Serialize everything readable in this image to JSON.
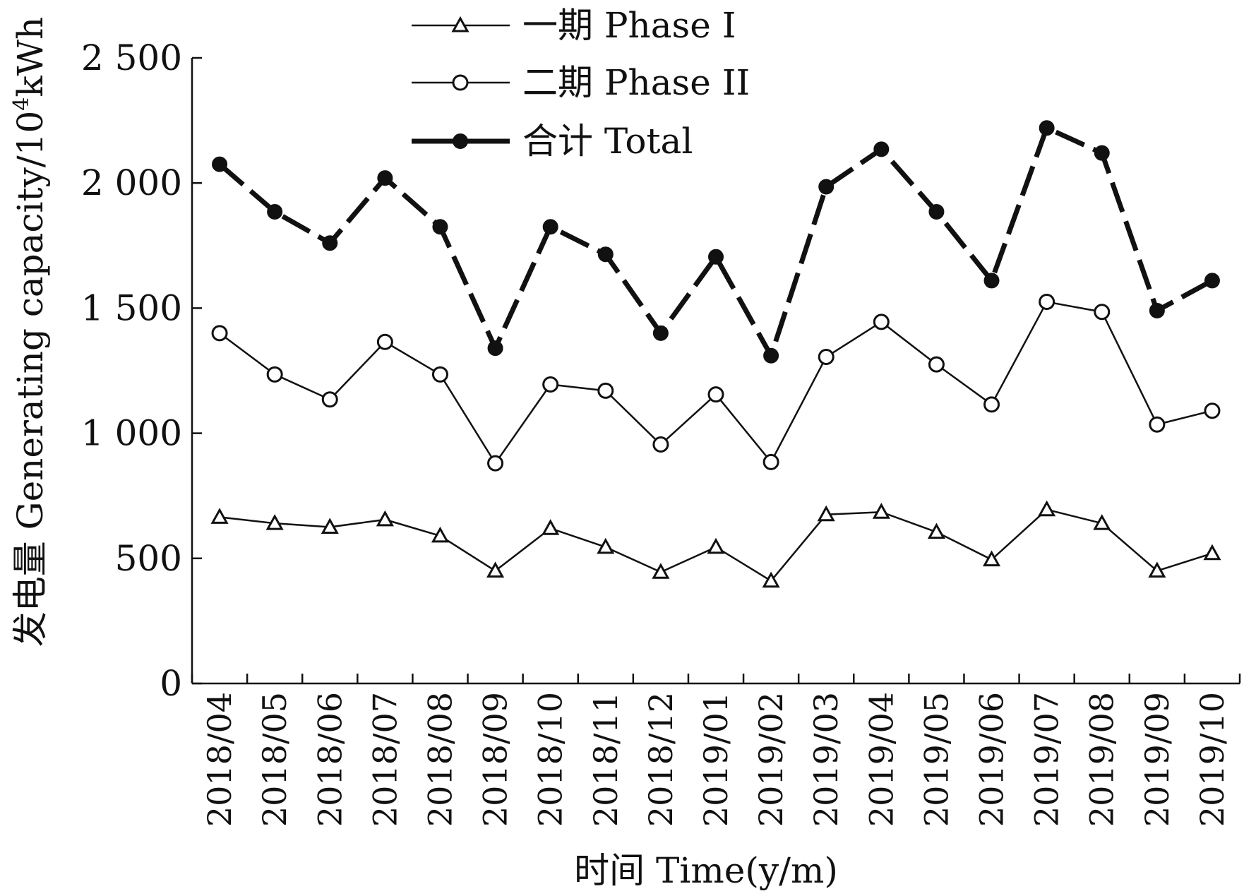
{
  "chart_data": {
    "type": "line",
    "title": "",
    "xlabel": "时间 Time(y/m)",
    "ylabel_cn": "发电量 Generating capacity/10",
    "ylabel_exp": "4",
    "ylabel_unit": "kWh",
    "ylim": [
      0,
      2500
    ],
    "yticks": [
      0,
      500,
      1000,
      1500,
      2000,
      2500
    ],
    "ytick_labels": [
      "0",
      "500",
      "1 000",
      "1 500",
      "2 000",
      "2 500"
    ],
    "categories": [
      "2018/04",
      "2018/05",
      "2018/06",
      "2018/07",
      "2018/08",
      "2018/09",
      "2018/10",
      "2018/11",
      "2018/12",
      "2019/01",
      "2019/02",
      "2019/03",
      "2019/04",
      "2019/05",
      "2019/06",
      "2019/07",
      "2019/08",
      "2019/09",
      "2019/10"
    ],
    "legend_position": "top-left",
    "series": [
      {
        "name": "一期 Phase I",
        "marker": "triangle",
        "style": "thin",
        "values": [
          665,
          640,
          625,
          655,
          590,
          450,
          620,
          545,
          445,
          545,
          410,
          675,
          685,
          605,
          495,
          695,
          640,
          450,
          520
        ]
      },
      {
        "name": "二期 Phase II",
        "marker": "open-circle",
        "style": "thin",
        "values": [
          1400,
          1235,
          1135,
          1365,
          1235,
          880,
          1195,
          1170,
          955,
          1155,
          885,
          1305,
          1445,
          1275,
          1115,
          1525,
          1485,
          1035,
          1090
        ]
      },
      {
        "name": "合计 Total",
        "marker": "filled-circle",
        "style": "thick",
        "values": [
          2075,
          1885,
          1760,
          2020,
          1825,
          1340,
          1825,
          1715,
          1400,
          1705,
          1310,
          1985,
          2135,
          1885,
          1610,
          2220,
          2120,
          1490,
          1610
        ]
      }
    ]
  }
}
